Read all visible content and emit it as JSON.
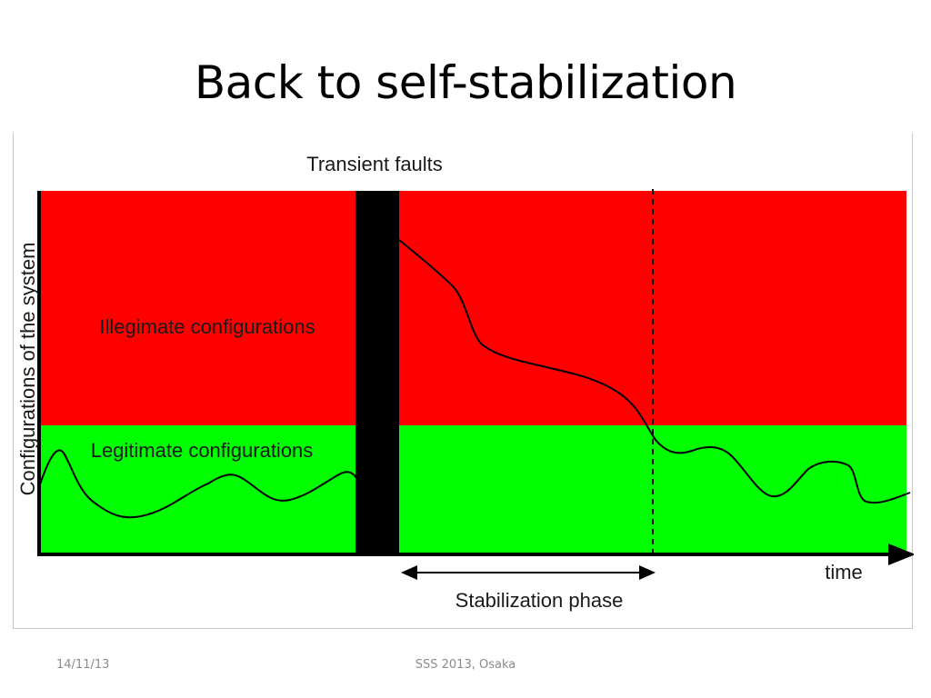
{
  "slide": {
    "title": "Back to self-stabilization"
  },
  "diagram": {
    "top_label": "Transient faults",
    "y_axis_label": "Configurations of the system",
    "x_axis_label": "time",
    "illegitimate_label": "Illegimate configurations",
    "legitimate_label": "Legitimate configurations",
    "phase_label": "Stabilization phase",
    "colors": {
      "illegitimate": "#ff0000",
      "legitimate": "#00ff00",
      "fault_bar": "#000000"
    }
  },
  "footer": {
    "date": "14/11/13",
    "center": "SSS 2013, Osaka"
  }
}
